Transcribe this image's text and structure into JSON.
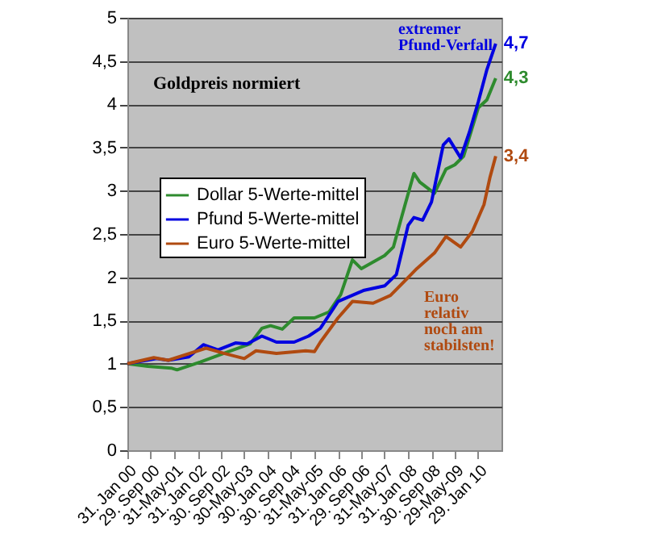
{
  "chart_data": {
    "type": "line",
    "title": "Goldpreis normiert",
    "xlim": [
      "2000-01-31",
      "2010-09-30"
    ],
    "xticks": [
      {
        "value": "2000-01-31",
        "label": "31. Jan 00"
      },
      {
        "value": "2000-09-29",
        "label": "29. Sep 00"
      },
      {
        "value": "2001-05-31",
        "label": "31-May-01"
      },
      {
        "value": "2002-01-31",
        "label": "31. Jan 02"
      },
      {
        "value": "2002-09-30",
        "label": "30. Sep 02"
      },
      {
        "value": "2003-05-30",
        "label": "30-May-03"
      },
      {
        "value": "2004-01-30",
        "label": "30. Jan 04"
      },
      {
        "value": "2004-09-30",
        "label": "30. Sep 04"
      },
      {
        "value": "2005-05-31",
        "label": "31-May-05"
      },
      {
        "value": "2006-01-31",
        "label": "31. Jan 06"
      },
      {
        "value": "2006-09-29",
        "label": "29. Sep 06"
      },
      {
        "value": "2007-05-31",
        "label": "31-May-07"
      },
      {
        "value": "2008-01-31",
        "label": "31. Jan 08"
      },
      {
        "value": "2008-09-30",
        "label": "30. Sep 08"
      },
      {
        "value": "2009-05-29",
        "label": "29-May-09"
      },
      {
        "value": "2010-01-29",
        "label": "29. Jan 10"
      }
    ],
    "ylim": [
      0,
      5
    ],
    "yticks": [
      0,
      {
        "value": 0.5,
        "label": "0,5"
      },
      1,
      {
        "value": 1.5,
        "label": "1,5"
      },
      2,
      {
        "value": 2.5,
        "label": "2,5"
      },
      3,
      {
        "value": 3.5,
        "label": "3,5"
      },
      4,
      {
        "value": 4.5,
        "label": "4,5"
      },
      5
    ],
    "grid": "y",
    "legend": "left",
    "series": [
      {
        "name": "Dollar 5-Werte-mittel",
        "color": "#2e8b2e",
        "x": [
          "2000-01-31",
          "2000-09",
          "2001-05",
          "2001-07",
          "2002-03",
          "2002-11",
          "2003-08",
          "2003-12",
          "2004-03",
          "2004-07",
          "2004-11",
          "2005-06",
          "2005-11",
          "2006-03",
          "2006-07",
          "2006-10",
          "2007-06",
          "2007-09",
          "2007-12",
          "2008-04",
          "2008-06",
          "2008-11",
          "2009-03",
          "2009-06",
          "2009-09",
          "2010-02",
          "2010-05",
          "2010-08"
        ],
        "values": [
          1.0,
          0.97,
          0.95,
          0.93,
          1.02,
          1.12,
          1.23,
          1.41,
          1.44,
          1.4,
          1.53,
          1.53,
          1.6,
          1.8,
          2.2,
          2.1,
          2.25,
          2.35,
          2.72,
          3.2,
          3.1,
          2.97,
          3.25,
          3.3,
          3.4,
          3.96,
          4.05,
          4.3
        ],
        "value_labels": [
          null,
          null,
          null,
          null,
          null,
          null,
          null,
          null,
          null,
          null,
          null,
          null,
          null,
          null,
          null,
          null,
          null,
          null,
          null,
          null,
          null,
          null,
          null,
          null,
          null,
          null,
          null,
          "4,3"
        ]
      },
      {
        "name": "Pfund 5-Werte-mittel",
        "color": "#0000e0",
        "x": [
          "2000-01-31",
          "2000-12",
          "2001-04",
          "2001-11",
          "2002-04",
          "2002-09",
          "2003-03",
          "2003-07",
          "2003-12",
          "2004-05",
          "2004-11",
          "2005-04",
          "2005-08",
          "2006-02",
          "2006-11",
          "2007-06",
          "2007-10",
          "2008-02",
          "2008-04",
          "2008-07",
          "2008-10",
          "2009-02",
          "2009-04",
          "2009-08",
          "2009-11",
          "2010-02",
          "2010-05",
          "2010-08"
        ],
        "values": [
          1.0,
          1.06,
          1.04,
          1.08,
          1.22,
          1.16,
          1.24,
          1.23,
          1.32,
          1.25,
          1.25,
          1.32,
          1.41,
          1.72,
          1.85,
          1.9,
          2.03,
          2.6,
          2.69,
          2.66,
          2.87,
          3.53,
          3.6,
          3.38,
          3.68,
          4.03,
          4.4,
          4.7
        ],
        "value_labels": [
          null,
          null,
          null,
          null,
          null,
          null,
          null,
          null,
          null,
          null,
          null,
          null,
          null,
          null,
          null,
          null,
          null,
          null,
          null,
          null,
          null,
          null,
          null,
          null,
          null,
          null,
          null,
          "4,7"
        ]
      },
      {
        "name": "Euro 5-Werte-mittel",
        "color": "#b04a10",
        "x": [
          "2000-01-31",
          "2000-11",
          "2001-04",
          "2002-05",
          "2002-11",
          "2003-06",
          "2003-10",
          "2004-05",
          "2005-03",
          "2005-06",
          "2005-08",
          "2006-02",
          "2006-07",
          "2007-02",
          "2007-08",
          "2008-03",
          "2008-05",
          "2008-11",
          "2009-03",
          "2009-08",
          "2009-12",
          "2010-04",
          "2010-06",
          "2010-08"
        ],
        "values": [
          1.0,
          1.07,
          1.04,
          1.18,
          1.12,
          1.06,
          1.15,
          1.12,
          1.15,
          1.14,
          1.25,
          1.53,
          1.72,
          1.7,
          1.79,
          2.03,
          2.1,
          2.28,
          2.47,
          2.35,
          2.53,
          2.84,
          3.15,
          3.4
        ],
        "value_labels": [
          null,
          null,
          null,
          null,
          null,
          null,
          null,
          null,
          null,
          null,
          null,
          null,
          null,
          null,
          null,
          null,
          null,
          null,
          null,
          null,
          null,
          null,
          null,
          "3,4"
        ]
      }
    ],
    "annotations": [
      "extremer Pfund-Verfall",
      "Euro relativ noch am stabilsten!"
    ]
  }
}
